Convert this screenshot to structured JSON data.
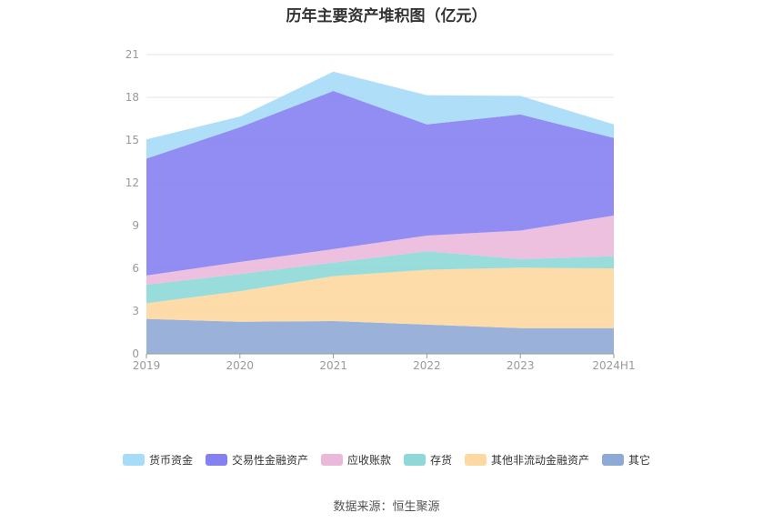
{
  "chart_data": {
    "type": "area",
    "stacked": true,
    "title": "历年主要资产堆积图（亿元）",
    "x": [
      "2019",
      "2020",
      "2021",
      "2022",
      "2023",
      "2024H1"
    ],
    "ylim": [
      0,
      21
    ],
    "yticks": [
      "0",
      "3",
      "6",
      "9",
      "12",
      "15",
      "18",
      "21"
    ],
    "grid": true,
    "legend_position": "bottom",
    "series": [
      {
        "name": "其它",
        "color": "#8fa9d6",
        "values": [
          2.45,
          2.25,
          2.3,
          2.05,
          1.8,
          1.8
        ]
      },
      {
        "name": "其他非流动金融资产",
        "color": "#fdd8a0",
        "values": [
          1.1,
          2.15,
          3.15,
          3.85,
          4.25,
          4.2
        ]
      },
      {
        "name": "存货",
        "color": "#8ed8d8",
        "values": [
          1.3,
          1.2,
          0.95,
          1.3,
          0.6,
          0.85
        ]
      },
      {
        "name": "应收账款",
        "color": "#eab9da",
        "values": [
          0.65,
          0.85,
          0.95,
          1.1,
          2.0,
          2.85
        ]
      },
      {
        "name": "交易性金融资产",
        "color": "#8581f2",
        "values": [
          8.2,
          9.45,
          11.1,
          7.8,
          8.15,
          5.45
        ]
      },
      {
        "name": "货币资金",
        "color": "#a6dcf7",
        "values": [
          1.35,
          0.75,
          1.35,
          2.05,
          1.3,
          0.95
        ]
      }
    ]
  },
  "legend_order": [
    {
      "label": "货币资金",
      "color": "#a6dcf7"
    },
    {
      "label": "交易性金融资产",
      "color": "#8581f2"
    },
    {
      "label": "应收账款",
      "color": "#eab9da"
    },
    {
      "label": "存货",
      "color": "#8ed8d8"
    },
    {
      "label": "其他非流动金融资产",
      "color": "#fdd8a0"
    },
    {
      "label": "其它",
      "color": "#8fa9d6"
    }
  ],
  "source": "数据来源：恒生聚源"
}
